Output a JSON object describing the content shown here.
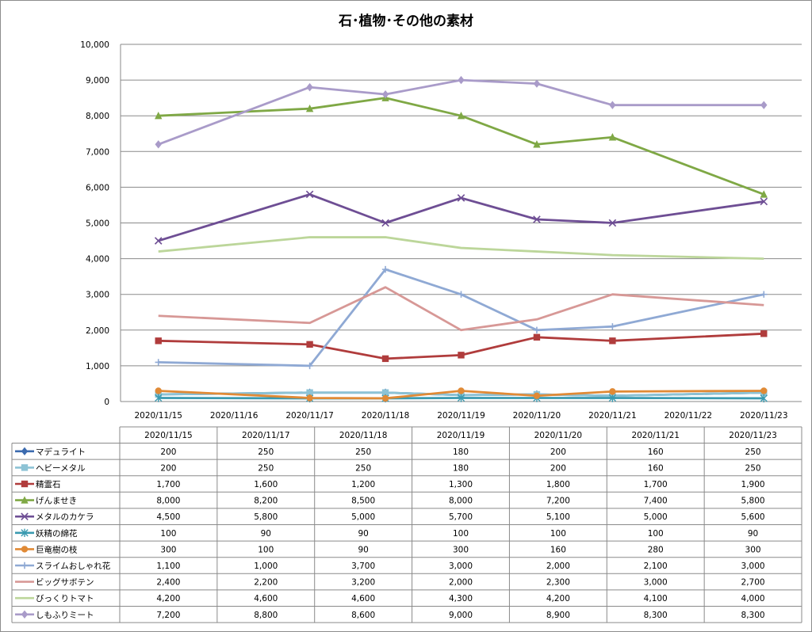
{
  "chart_data": {
    "type": "line",
    "title": "石･植物･その他の素材",
    "x_axis_labels": [
      "2020/11/15",
      "2020/11/16",
      "2020/11/17",
      "2020/11/18",
      "2020/11/19",
      "2020/11/20",
      "2020/11/21",
      "2020/11/22",
      "2020/11/23"
    ],
    "x": [
      "2020/11/15",
      "2020/11/17",
      "2020/11/18",
      "2020/11/19",
      "2020/11/20",
      "2020/11/21",
      "2020/11/23"
    ],
    "ylim": [
      0,
      10000
    ],
    "y_ticks": [
      0,
      1000,
      2000,
      3000,
      4000,
      5000,
      6000,
      7000,
      8000,
      9000,
      10000
    ],
    "y_tick_labels": [
      "0",
      "1,000",
      "2,000",
      "3,000",
      "4,000",
      "5,000",
      "6,000",
      "7,000",
      "8,000",
      "9,000",
      "10,000"
    ],
    "grid": true,
    "legend": "data-table-below",
    "series": [
      {
        "name": "マデュライト",
        "color": "#3C6BAF",
        "marker": "diamond",
        "values": [
          200,
          250,
          250,
          180,
          200,
          160,
          250
        ],
        "labels": [
          "200",
          "250",
          "250",
          "180",
          "200",
          "160",
          "250"
        ]
      },
      {
        "name": "ヘビーメタル",
        "color": "#8DC3D5",
        "marker": "square",
        "values": [
          200,
          250,
          250,
          180,
          200,
          160,
          250
        ],
        "labels": [
          "200",
          "250",
          "250",
          "180",
          "200",
          "160",
          "250"
        ]
      },
      {
        "name": "精霊石",
        "color": "#B03C3C",
        "marker": "square",
        "values": [
          1700,
          1600,
          1200,
          1300,
          1800,
          1700,
          1900
        ],
        "labels": [
          "1,700",
          "1,600",
          "1,200",
          "1,300",
          "1,800",
          "1,700",
          "1,900"
        ]
      },
      {
        "name": "げんませき",
        "color": "#7FA845",
        "marker": "triangle",
        "values": [
          8000,
          8200,
          8500,
          8000,
          7200,
          7400,
          5800
        ],
        "labels": [
          "8,000",
          "8,200",
          "8,500",
          "8,000",
          "7,200",
          "7,400",
          "5,800"
        ]
      },
      {
        "name": "メタルのカケラ",
        "color": "#6E4E94",
        "marker": "x",
        "values": [
          4500,
          5800,
          5000,
          5700,
          5100,
          5000,
          5600
        ],
        "labels": [
          "4,500",
          "5,800",
          "5,000",
          "5,700",
          "5,100",
          "5,000",
          "5,600"
        ]
      },
      {
        "name": "妖精の綿花",
        "color": "#3A9AB0",
        "marker": "star",
        "values": [
          100,
          90,
          90,
          100,
          100,
          100,
          90
        ],
        "labels": [
          "100",
          "90",
          "90",
          "100",
          "100",
          "100",
          "90"
        ]
      },
      {
        "name": "巨竜樹の枝",
        "color": "#E08A36",
        "marker": "circle",
        "values": [
          300,
          100,
          90,
          300,
          160,
          280,
          300
        ],
        "labels": [
          "300",
          "100",
          "90",
          "300",
          "160",
          "280",
          "300"
        ]
      },
      {
        "name": "スライムおしゃれ花",
        "color": "#8FA9D4",
        "marker": "plus",
        "values": [
          1100,
          1000,
          3700,
          3000,
          2000,
          2100,
          3000
        ],
        "labels": [
          "1,100",
          "1,000",
          "3,700",
          "3,000",
          "2,000",
          "2,100",
          "3,000"
        ]
      },
      {
        "name": "ビッグサボテン",
        "color": "#D79896",
        "marker": "none",
        "values": [
          2400,
          2200,
          3200,
          2000,
          2300,
          3000,
          2700
        ],
        "labels": [
          "2,400",
          "2,200",
          "3,200",
          "2,000",
          "2,300",
          "3,000",
          "2,700"
        ]
      },
      {
        "name": "びっくりトマト",
        "color": "#BCD69A",
        "marker": "none",
        "values": [
          4200,
          4600,
          4600,
          4300,
          4200,
          4100,
          4000
        ],
        "labels": [
          "4,200",
          "4,600",
          "4,600",
          "4,300",
          "4,200",
          "4,100",
          "4,000"
        ]
      },
      {
        "name": "しもふりミート",
        "color": "#A99BC9",
        "marker": "diamond",
        "values": [
          7200,
          8800,
          8600,
          9000,
          8900,
          8300,
          8300
        ],
        "labels": [
          "7,200",
          "8,800",
          "8,600",
          "9,000",
          "8,900",
          "8,300",
          "8,300"
        ]
      }
    ]
  }
}
